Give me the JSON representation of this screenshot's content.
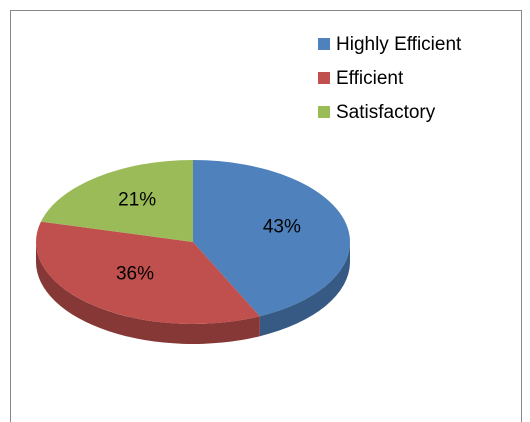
{
  "chart_data": {
    "type": "pie",
    "categories": [
      "Highly Efficient",
      "Efficient",
      "Satisfactory"
    ],
    "values": [
      43,
      36,
      21
    ],
    "value_labels": [
      "43%",
      "36%",
      "21%"
    ],
    "colors": [
      "#4f81bd",
      "#c0504d",
      "#9bbb59"
    ],
    "legend": "top-right"
  }
}
